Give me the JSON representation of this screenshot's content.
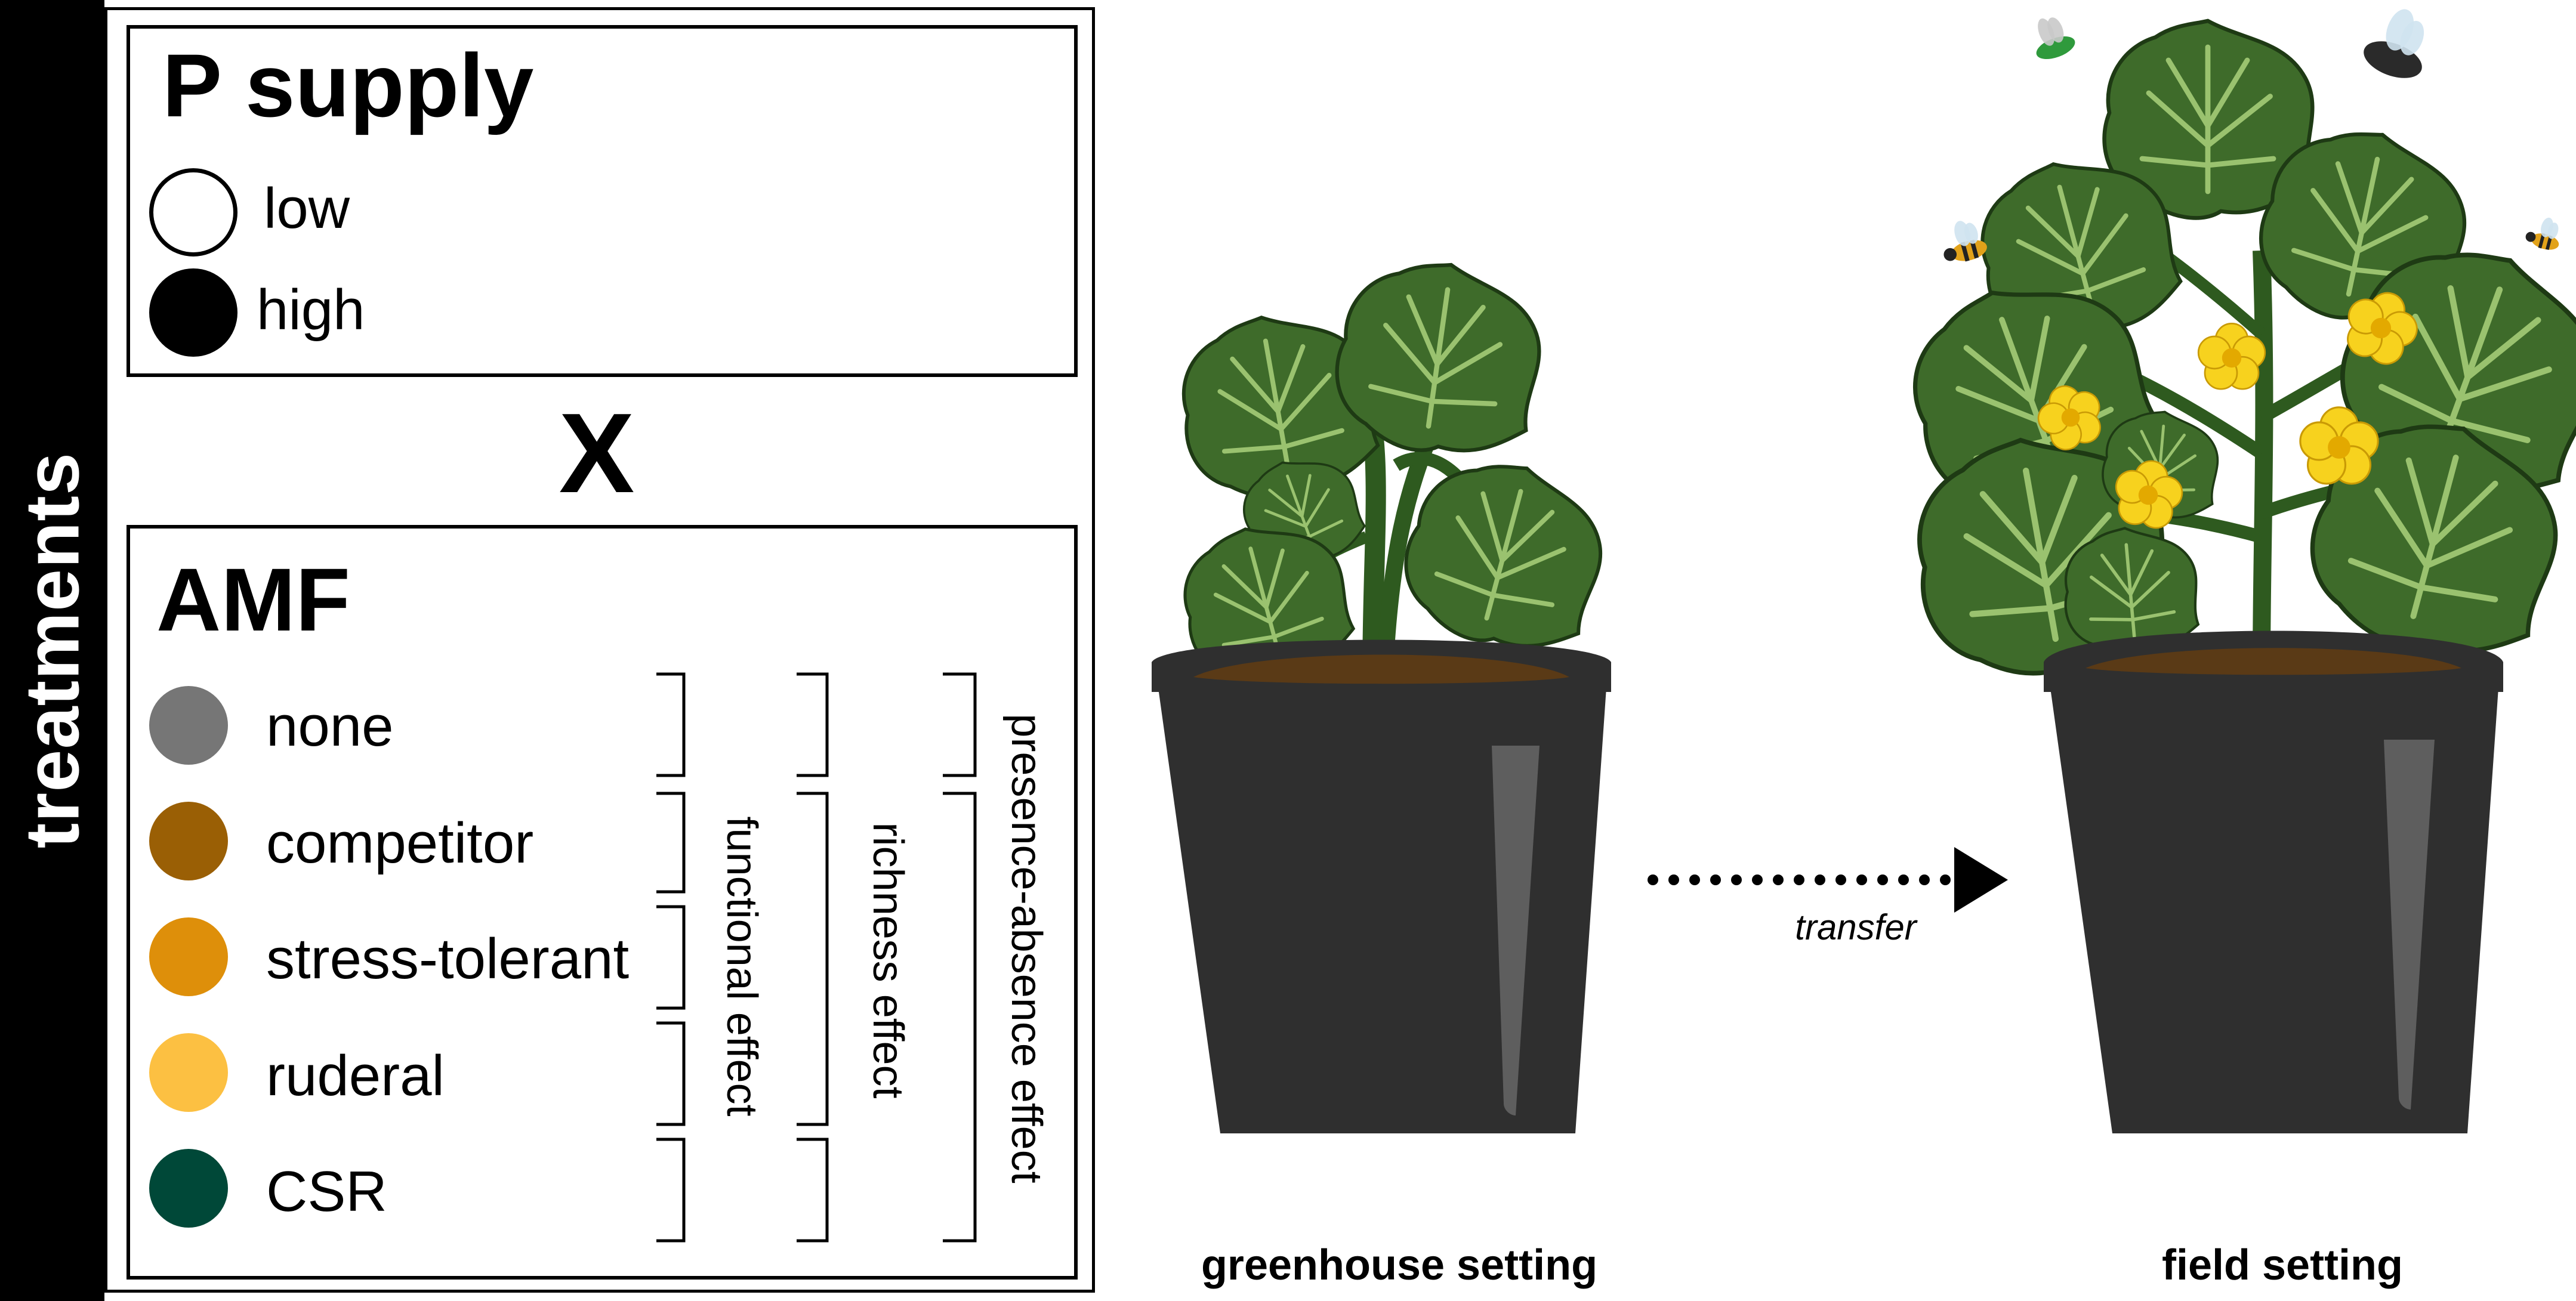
{
  "sidebar": {
    "label": "treatments"
  },
  "p_supply": {
    "title": "P supply",
    "levels": [
      {
        "label": "low",
        "color": "#ffffff"
      },
      {
        "label": "high",
        "color": "#000000"
      }
    ]
  },
  "cross_symbol": "X",
  "amf": {
    "title": "AMF",
    "levels": [
      {
        "label": "none",
        "color": "#767676"
      },
      {
        "label": "competitor",
        "color": "#9a5f05"
      },
      {
        "label": "stress-tolerant",
        "color": "#de8f0a"
      },
      {
        "label": "ruderal",
        "color": "#fcc042"
      },
      {
        "label": "CSR",
        "color": "#004838"
      }
    ],
    "effects": [
      {
        "label": "functional effect"
      },
      {
        "label": "richness effect"
      },
      {
        "label": "presence-absence effect"
      }
    ]
  },
  "scene": {
    "transfer_label": "transfer",
    "greenhouse_caption": "greenhouse setting",
    "field_caption": "field setting"
  },
  "colors": {
    "leaf": "#3e6b2a",
    "leaf_vein": "#9ac26f",
    "pot": "#2f2f2f",
    "soil": "#5a3a16",
    "flower": "#f7d21e"
  }
}
